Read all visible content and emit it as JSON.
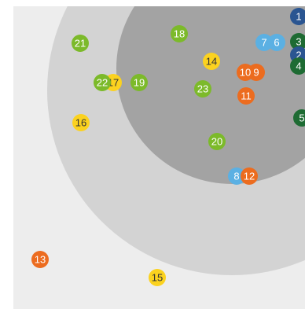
{
  "rings": [
    {
      "name": "outer-ring",
      "color": "#d3d3d3"
    },
    {
      "name": "inner-ring",
      "color": "#a3a3a3"
    }
  ],
  "palette": {
    "blue": "#2a5591",
    "dark_green": "#1e6b33",
    "light_blue": "#5bb0e3",
    "orange": "#ec6c1f",
    "yellow": "#fbd21f",
    "green": "#7cba2a"
  },
  "markers": [
    {
      "label": "1",
      "color": "blue"
    },
    {
      "label": "2",
      "color": "blue"
    },
    {
      "label": "3",
      "color": "dark_green"
    },
    {
      "label": "4",
      "color": "dark_green"
    },
    {
      "label": "5",
      "color": "dark_green"
    },
    {
      "label": "6",
      "color": "light_blue"
    },
    {
      "label": "7",
      "color": "light_blue"
    },
    {
      "label": "8",
      "color": "light_blue"
    },
    {
      "label": "9",
      "color": "orange"
    },
    {
      "label": "10",
      "color": "orange"
    },
    {
      "label": "11",
      "color": "orange"
    },
    {
      "label": "12",
      "color": "orange"
    },
    {
      "label": "13",
      "color": "orange"
    },
    {
      "label": "14",
      "color": "yellow"
    },
    {
      "label": "15",
      "color": "yellow"
    },
    {
      "label": "16",
      "color": "yellow"
    },
    {
      "label": "17",
      "color": "yellow"
    },
    {
      "label": "18",
      "color": "green"
    },
    {
      "label": "19",
      "color": "green"
    },
    {
      "label": "20",
      "color": "green"
    },
    {
      "label": "21",
      "color": "green"
    },
    {
      "label": "22",
      "color": "green"
    },
    {
      "label": "23",
      "color": "green"
    }
  ]
}
